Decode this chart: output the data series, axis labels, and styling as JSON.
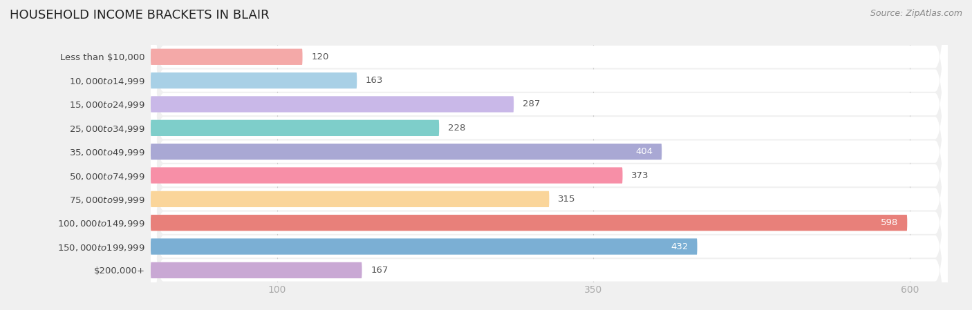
{
  "title": "HOUSEHOLD INCOME BRACKETS IN BLAIR",
  "source": "Source: ZipAtlas.com",
  "categories": [
    "Less than $10,000",
    "$10,000 to $14,999",
    "$15,000 to $24,999",
    "$25,000 to $34,999",
    "$35,000 to $49,999",
    "$50,000 to $74,999",
    "$75,000 to $99,999",
    "$100,000 to $149,999",
    "$150,000 to $199,999",
    "$200,000+"
  ],
  "values": [
    120,
    163,
    287,
    228,
    404,
    373,
    315,
    598,
    432,
    167
  ],
  "bar_colors": [
    "#F4A9A8",
    "#A8D0E6",
    "#C9B8E8",
    "#7ECECA",
    "#A9A8D4",
    "#F78FA7",
    "#FAD59A",
    "#E8807A",
    "#7BAFD4",
    "#C9A8D4"
  ],
  "label_colors": [
    "#666666",
    "#666666",
    "#666666",
    "#666666",
    "#ffffff",
    "#666666",
    "#666666",
    "#ffffff",
    "#ffffff",
    "#666666"
  ],
  "xlim": [
    0,
    630
  ],
  "xticks": [
    100,
    350,
    600
  ],
  "bg_color": "#f0f0f0",
  "row_bg_color": "#ffffff",
  "title_fontsize": 13,
  "label_fontsize": 9.5,
  "value_fontsize": 9.5,
  "tick_fontsize": 10,
  "source_fontsize": 9
}
